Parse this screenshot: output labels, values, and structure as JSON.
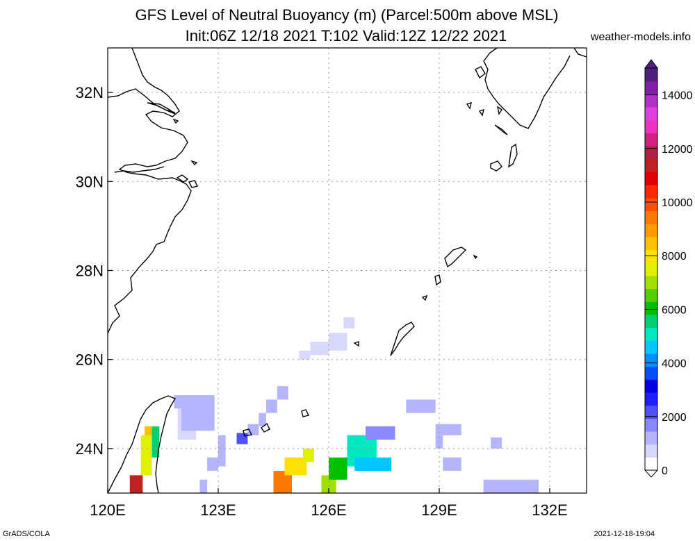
{
  "title": {
    "line1": "GFS Level of Neutral Buoyancy (m) (Parcel:500m above MSL)",
    "line2": "Init:06Z 12/18 2021 T:102 Valid:12Z 12/22 2021"
  },
  "site": "weather-models.info",
  "footer": {
    "left": "GrADS/COLA",
    "right": "2021-12-18-19:04"
  },
  "map": {
    "lon_range": [
      120,
      133
    ],
    "lat_range": [
      23,
      33
    ],
    "lon_ticks": [
      {
        "v": 120,
        "label": "120E"
      },
      {
        "v": 123,
        "label": "123E"
      },
      {
        "v": 126,
        "label": "126E"
      },
      {
        "v": 129,
        "label": "129E"
      },
      {
        "v": 132,
        "label": "132E"
      }
    ],
    "lat_ticks": [
      {
        "v": 24,
        "label": "24N"
      },
      {
        "v": 26,
        "label": "26N"
      },
      {
        "v": 28,
        "label": "28N"
      },
      {
        "v": 30,
        "label": "30N"
      },
      {
        "v": 32,
        "label": "32N"
      }
    ],
    "grid": true
  },
  "colorbar": {
    "range": [
      0,
      15000
    ],
    "labels": [
      {
        "v": 0,
        "label": "0"
      },
      {
        "v": 2000,
        "label": "2000"
      },
      {
        "v": 4000,
        "label": "4000"
      },
      {
        "v": 6000,
        "label": "6000"
      },
      {
        "v": 8000,
        "label": "8000"
      },
      {
        "v": 10000,
        "label": "10000"
      },
      {
        "v": 12000,
        "label": "12000"
      },
      {
        "v": 14000,
        "label": "14000"
      }
    ],
    "colors": [
      "#ffffff",
      "#d8d8ff",
      "#b4b4ff",
      "#8888ff",
      "#5050ff",
      "#2020ff",
      "#0000e0",
      "#0050ff",
      "#0090ff",
      "#00c8ff",
      "#00e8c0",
      "#00d070",
      "#00c000",
      "#50d000",
      "#a0e000",
      "#e0f000",
      "#ffe000",
      "#ffc000",
      "#ff9a00",
      "#ff7800",
      "#ff5000",
      "#ff2800",
      "#e00000",
      "#c02020",
      "#b02040",
      "#d02080",
      "#f030c0",
      "#e040e0",
      "#b030c8",
      "#8020a8",
      "#502080"
    ]
  },
  "field": [
    {
      "lon": 126.0,
      "lat": 26.2,
      "lon2": 126.5,
      "lat2": 26.6,
      "v": 900
    },
    {
      "lon": 125.5,
      "lat": 26.1,
      "lon2": 126.0,
      "lat2": 26.4,
      "v": 900
    },
    {
      "lon": 125.2,
      "lat": 26.0,
      "lon2": 125.5,
      "lat2": 26.2,
      "v": 900
    },
    {
      "lon": 126.4,
      "lat": 26.7,
      "lon2": 126.7,
      "lat2": 26.95,
      "v": 900
    },
    {
      "lon": 124.6,
      "lat": 25.1,
      "lon2": 124.9,
      "lat2": 25.4,
      "v": 1000
    },
    {
      "lon": 124.3,
      "lat": 24.8,
      "lon2": 124.6,
      "lat2": 25.1,
      "v": 1000
    },
    {
      "lon": 124.1,
      "lat": 24.5,
      "lon2": 124.3,
      "lat2": 24.8,
      "v": 1000
    },
    {
      "lon": 123.8,
      "lat": 24.3,
      "lon2": 124.1,
      "lat2": 24.55,
      "v": 1000
    },
    {
      "lon": 123.5,
      "lat": 24.1,
      "lon2": 123.8,
      "lat2": 24.35,
      "v": 2000
    },
    {
      "lon": 123.0,
      "lat": 23.6,
      "lon2": 123.2,
      "lat2": 24.3,
      "v": 1200
    },
    {
      "lon": 122.7,
      "lat": 23.5,
      "lon2": 123.0,
      "lat2": 23.8,
      "v": 1200
    },
    {
      "lon": 122.5,
      "lat": 23.0,
      "lon2": 122.7,
      "lat2": 23.3,
      "v": 1200
    },
    {
      "lon": 121.9,
      "lat": 24.2,
      "lon2": 122.4,
      "lat2": 25.1,
      "v": 900
    },
    {
      "lon": 121.8,
      "lat": 24.9,
      "lon2": 122.9,
      "lat2": 25.2,
      "v": 1000
    },
    {
      "lon": 122.0,
      "lat": 24.4,
      "lon2": 122.9,
      "lat2": 25.0,
      "v": 1200
    },
    {
      "lon": 121.0,
      "lat": 24.2,
      "lon2": 121.4,
      "lat2": 24.5,
      "v": 8500
    },
    {
      "lon": 120.9,
      "lat": 23.4,
      "lon2": 121.2,
      "lat2": 24.3,
      "v": 7500
    },
    {
      "lon": 120.6,
      "lat": 23.0,
      "lon2": 120.95,
      "lat2": 23.4,
      "v": 11500
    },
    {
      "lon": 121.2,
      "lat": 23.8,
      "lon2": 121.4,
      "lat2": 24.5,
      "v": 5500
    },
    {
      "lon": 124.5,
      "lat": 23.0,
      "lon2": 125.0,
      "lat2": 23.5,
      "v": 9200
    },
    {
      "lon": 124.8,
      "lat": 23.4,
      "lon2": 125.4,
      "lat2": 23.8,
      "v": 8200
    },
    {
      "lon": 125.3,
      "lat": 23.7,
      "lon2": 125.6,
      "lat2": 24.0,
      "v": 7600
    },
    {
      "lon": 125.8,
      "lat": 23.0,
      "lon2": 126.2,
      "lat2": 23.4,
      "v": 6800
    },
    {
      "lon": 126.0,
      "lat": 23.3,
      "lon2": 126.5,
      "lat2": 23.8,
      "v": 6000
    },
    {
      "lon": 126.5,
      "lat": 23.6,
      "lon2": 127.3,
      "lat2": 24.3,
      "v": 5000
    },
    {
      "lon": 126.7,
      "lat": 23.5,
      "lon2": 127.7,
      "lat2": 23.8,
      "v": 4500
    },
    {
      "lon": 127.0,
      "lat": 24.2,
      "lon2": 127.8,
      "lat2": 24.5,
      "v": 1500
    },
    {
      "lon": 128.1,
      "lat": 24.8,
      "lon2": 128.9,
      "lat2": 25.1,
      "v": 1300
    },
    {
      "lon": 128.9,
      "lat": 24.3,
      "lon2": 129.6,
      "lat2": 24.55,
      "v": 1300
    },
    {
      "lon": 128.9,
      "lat": 24.0,
      "lon2": 129.1,
      "lat2": 24.3,
      "v": 1300
    },
    {
      "lon": 129.1,
      "lat": 23.5,
      "lon2": 129.6,
      "lat2": 23.8,
      "v": 1300
    },
    {
      "lon": 130.2,
      "lat": 23.0,
      "lon2": 131.7,
      "lat2": 23.3,
      "v": 1300
    },
    {
      "lon": 130.4,
      "lat": 24.0,
      "lon2": 130.7,
      "lat2": 24.25,
      "v": 1300
    }
  ]
}
